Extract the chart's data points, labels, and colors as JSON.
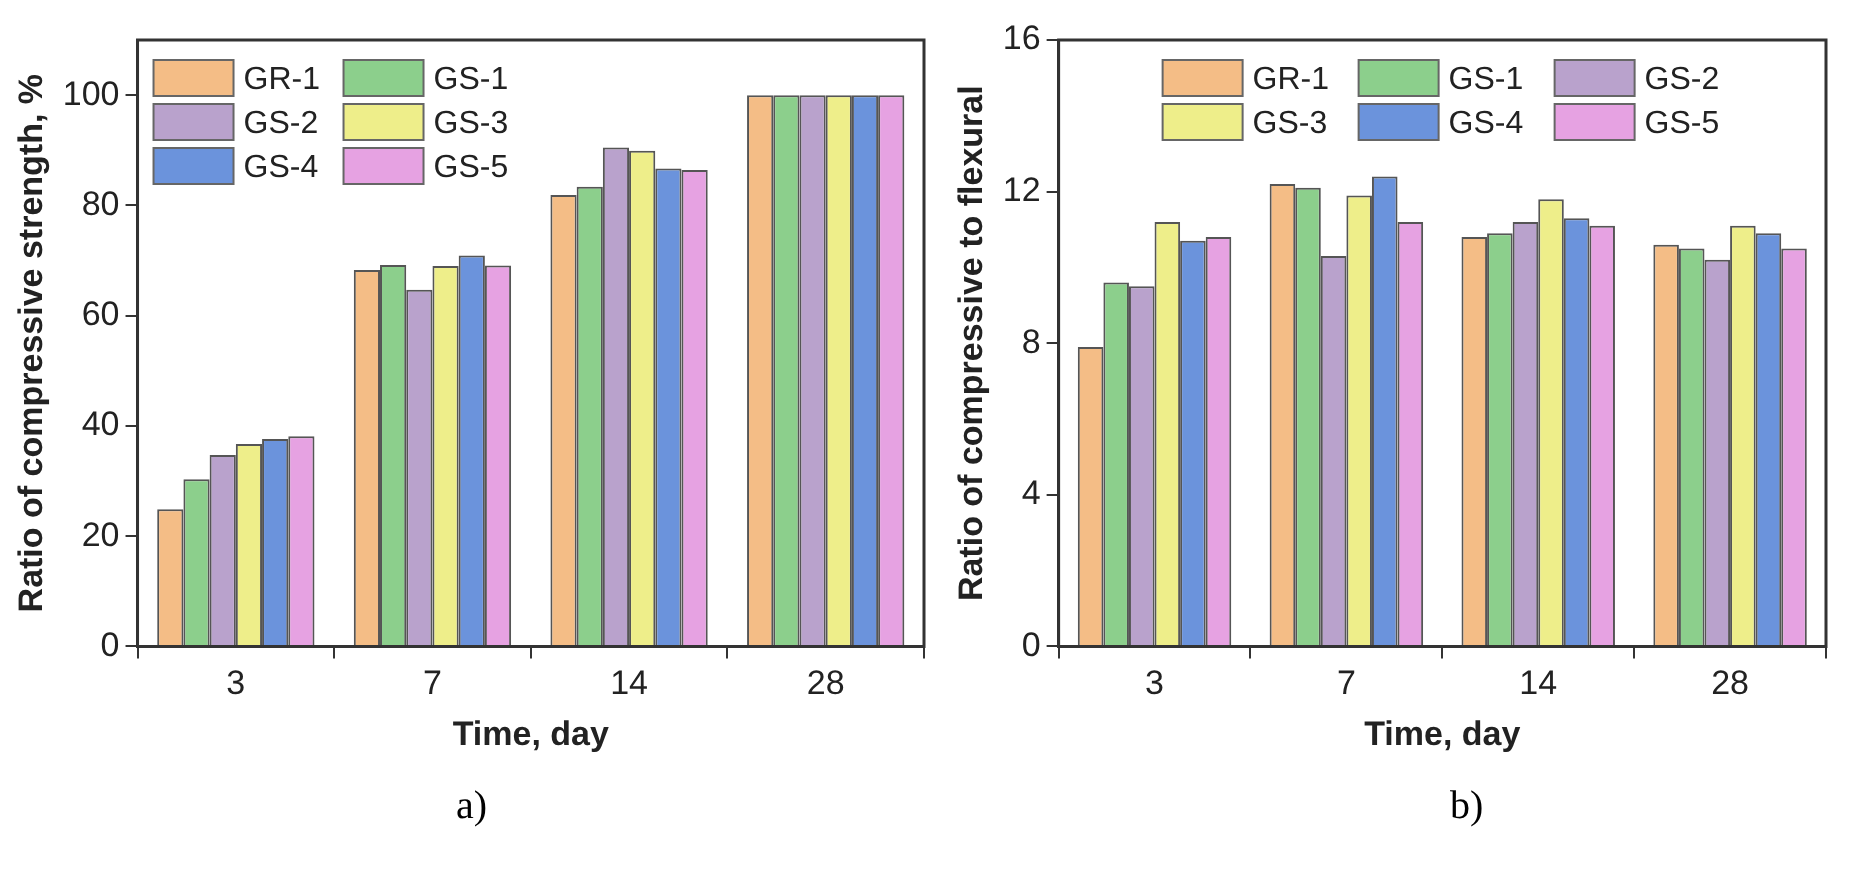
{
  "chart_data": [
    {
      "type": "bar",
      "xlabel": "Time, day",
      "ylabel": "Ratio of compressive strength, %",
      "categories": [
        "3",
        "7",
        "14",
        "28"
      ],
      "series": [
        {
          "name": "GR-1",
          "color": "#f4bd86",
          "values": [
            24.9,
            68.3,
            81.9,
            100
          ]
        },
        {
          "name": "GS-1",
          "color": "#8ccf8c",
          "values": [
            30.3,
            69.2,
            83.4,
            100
          ]
        },
        {
          "name": "GS-2",
          "color": "#b9a2cc",
          "values": [
            34.7,
            64.7,
            90.5,
            100
          ]
        },
        {
          "name": "GS-3",
          "color": "#eeee8a",
          "values": [
            36.7,
            69.0,
            89.9,
            100
          ]
        },
        {
          "name": "GS-4",
          "color": "#6b93dc",
          "values": [
            37.6,
            70.9,
            86.7,
            100
          ]
        },
        {
          "name": "GS-5",
          "color": "#e6a2e2",
          "values": [
            38.1,
            69.1,
            86.4,
            100
          ]
        }
      ],
      "ylim": [
        0,
        110
      ],
      "yticks": [
        0,
        20,
        40,
        60,
        80,
        100
      ],
      "legend": "top left",
      "grid": false,
      "annotations": [
        "a)"
      ]
    },
    {
      "type": "bar",
      "xlabel": "Time, day",
      "ylabel": "Ratio of compressive to flexural",
      "categories": [
        "3",
        "7",
        "14",
        "28"
      ],
      "series": [
        {
          "name": "GR-1",
          "color": "#f4bd86",
          "values": [
            7.9,
            12.2,
            10.8,
            10.6
          ]
        },
        {
          "name": "GS-1",
          "color": "#8ccf8c",
          "values": [
            9.6,
            12.1,
            10.9,
            10.5
          ]
        },
        {
          "name": "GS-2",
          "color": "#b9a2cc",
          "values": [
            9.5,
            10.3,
            11.2,
            10.2
          ]
        },
        {
          "name": "GS-3",
          "color": "#eeee8a",
          "values": [
            11.2,
            11.9,
            11.8,
            11.1
          ]
        },
        {
          "name": "GS-4",
          "color": "#6b93dc",
          "values": [
            10.7,
            12.4,
            11.3,
            10.9
          ]
        },
        {
          "name": "GS-5",
          "color": "#e6a2e2",
          "values": [
            10.8,
            11.2,
            11.1,
            10.5
          ]
        }
      ],
      "ylim": [
        0,
        16
      ],
      "yticks": [
        0,
        4,
        8,
        12,
        16
      ],
      "legend": "top",
      "grid": false,
      "annotations": [
        "b)"
      ]
    }
  ]
}
